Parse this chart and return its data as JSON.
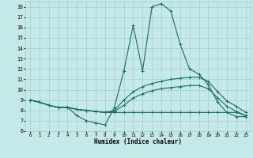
{
  "xlabel": "Humidex (Indice chaleur)",
  "xlim": [
    -0.5,
    23.5
  ],
  "ylim": [
    6,
    18.5
  ],
  "yticks": [
    6,
    7,
    8,
    9,
    10,
    11,
    12,
    13,
    14,
    15,
    16,
    17,
    18
  ],
  "xticks": [
    0,
    1,
    2,
    3,
    4,
    5,
    6,
    7,
    8,
    9,
    10,
    11,
    12,
    13,
    14,
    15,
    16,
    17,
    18,
    19,
    20,
    21,
    22,
    23
  ],
  "background_color": "#c5e8e8",
  "grid_color": "#9ec8c8",
  "line_color": "#1a6b6b",
  "line1_y": [
    9.0,
    8.8,
    8.5,
    8.3,
    8.3,
    7.5,
    7.0,
    6.8,
    6.6,
    8.3,
    11.8,
    16.2,
    11.8,
    18.0,
    18.3,
    17.6,
    14.4,
    12.0,
    11.5,
    10.5,
    8.8,
    7.8,
    7.4,
    7.4
  ],
  "line2_y": [
    9.0,
    8.8,
    8.5,
    8.3,
    8.3,
    8.1,
    8.0,
    7.9,
    7.8,
    8.0,
    9.0,
    9.8,
    10.3,
    10.6,
    10.8,
    11.0,
    11.1,
    11.2,
    11.2,
    10.8,
    9.8,
    8.9,
    8.4,
    7.8
  ],
  "line3_y": [
    9.0,
    8.8,
    8.5,
    8.3,
    8.3,
    8.1,
    8.0,
    7.9,
    7.8,
    7.9,
    8.5,
    9.2,
    9.6,
    9.9,
    10.1,
    10.2,
    10.3,
    10.4,
    10.4,
    10.1,
    9.2,
    8.4,
    7.9,
    7.5
  ],
  "line4_y": [
    9.0,
    8.8,
    8.5,
    8.3,
    8.3,
    8.1,
    8.0,
    7.9,
    7.8,
    7.8,
    7.8,
    7.8,
    7.8,
    7.8,
    7.8,
    7.8,
    7.8,
    7.8,
    7.8,
    7.8,
    7.8,
    7.8,
    7.8,
    7.5
  ]
}
